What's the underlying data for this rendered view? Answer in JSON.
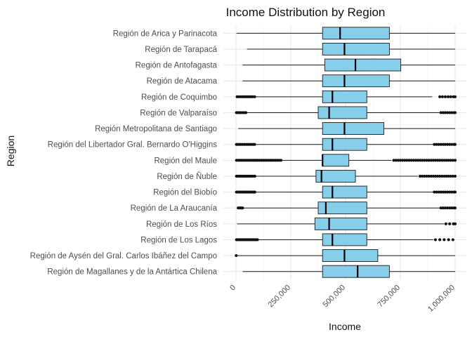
{
  "chart_data": {
    "type": "boxplot",
    "orientation": "horizontal",
    "title": "Income Distribution by Region",
    "xlabel": "Income",
    "ylabel": "Region",
    "xlim": [
      -15000,
      1030000
    ],
    "x_ticks": [
      0,
      250000,
      500000,
      750000,
      1000000
    ],
    "x_tick_labels": [
      "0",
      "250,000",
      "500,000",
      "750,000",
      "1,000,000"
    ],
    "grid": true,
    "legend": "none",
    "colors": {
      "box_fill": "#87CEEB",
      "stroke": "#1a1a1a",
      "outlier": "#111111",
      "grid_major": "#e6e6e6",
      "grid_minor": "#f2f2f2"
    },
    "categories": [
      "Región de Arica y Parinacota",
      "Región de Tarapacá",
      "Región de Antofagasta",
      "Región de Atacama",
      "Región de Coquimbo",
      "Región de Valparaíso",
      "Región Metropolitana de Santiago",
      "Región del Libertador Gral. Bernardo O'Higgins",
      "Región del Maule",
      "Región de Ñuble",
      "Región del Biobío",
      "Región de La Araucanía",
      "Región de Los Ríos",
      "Región de Los Lagos",
      "Región de Aysén del Gral. Carlos Ibáñez del Campo",
      "Región de Magallanes y de la Antártica Chilena"
    ],
    "boxes": [
      {
        "min": 2000,
        "q1": 395000,
        "median": 475000,
        "q3": 700000,
        "max": 1000000,
        "outliers": []
      },
      {
        "min": 50000,
        "q1": 395000,
        "median": 495000,
        "q3": 700000,
        "max": 1000000,
        "outliers": []
      },
      {
        "min": 30000,
        "q1": 405000,
        "median": 545000,
        "q3": 752000,
        "max": 1000000,
        "outliers": []
      },
      {
        "min": 30000,
        "q1": 395000,
        "median": 495000,
        "q3": 700000,
        "max": 1000000,
        "outliers": []
      },
      {
        "min": 15000,
        "q1": 395000,
        "median": 440000,
        "q3": 597000,
        "max": 895000,
        "outliers": [
          5000,
          12000,
          20000,
          28000,
          36000,
          44000,
          52000,
          60000,
          68000,
          76000,
          85000,
          930000,
          942000,
          955000,
          968000,
          980000,
          992000,
          1000000
        ]
      },
      {
        "min": 45000,
        "q1": 375000,
        "median": 425000,
        "q3": 597000,
        "max": 930000,
        "outliers": [
          2000,
          8000,
          15000,
          22000,
          30000,
          38000,
          45000,
          935000,
          945000,
          955000,
          965000,
          975000,
          985000,
          995000,
          1000000
        ]
      },
      {
        "min": 10000,
        "q1": 395000,
        "median": 495000,
        "q3": 675000,
        "max": 1000000,
        "outliers": []
      },
      {
        "min": 85000,
        "q1": 395000,
        "median": 440000,
        "q3": 597000,
        "max": 900000,
        "outliers": [
          2000,
          8000,
          15000,
          22000,
          30000,
          38000,
          46000,
          54000,
          62000,
          70000,
          78000,
          85000,
          905000,
          915000,
          925000,
          935000,
          945000,
          955000,
          965000,
          975000,
          985000,
          995000,
          1000000
        ]
      },
      {
        "min": 200000,
        "q1": 395000,
        "median": 395000,
        "q3": 515000,
        "max": 710000,
        "outliers": [
          2000,
          9000,
          16000,
          23000,
          30000,
          37000,
          44000,
          51000,
          58000,
          65000,
          72000,
          79000,
          86000,
          93000,
          100000,
          108000,
          116000,
          124000,
          132000,
          140000,
          148000,
          156000,
          164000,
          172000,
          180000,
          188000,
          196000,
          205000,
          720000,
          730000,
          740000,
          750000,
          760000,
          770000,
          780000,
          790000,
          800000,
          810000,
          820000,
          830000,
          840000,
          850000,
          860000,
          870000,
          880000,
          890000,
          900000,
          910000,
          920000,
          930000,
          940000,
          950000,
          960000,
          970000,
          980000,
          990000,
          1000000
        ]
      },
      {
        "min": 90000,
        "q1": 365000,
        "median": 390000,
        "q3": 545000,
        "max": 830000,
        "outliers": [
          2000,
          8000,
          14000,
          20000,
          26000,
          32000,
          38000,
          44000,
          50000,
          56000,
          62000,
          68000,
          74000,
          80000,
          86000,
          840000,
          850000,
          860000,
          870000,
          880000,
          890000,
          900000,
          910000,
          920000,
          930000,
          940000,
          950000,
          960000,
          970000,
          980000,
          990000,
          1000000
        ]
      },
      {
        "min": 90000,
        "q1": 395000,
        "median": 440000,
        "q3": 597000,
        "max": 900000,
        "outliers": [
          2000,
          8000,
          14000,
          20000,
          26000,
          32000,
          38000,
          44000,
          50000,
          56000,
          62000,
          68000,
          74000,
          80000,
          86000,
          905000,
          915000,
          925000,
          935000,
          945000,
          955000,
          965000,
          975000,
          985000,
          995000,
          1000000
        ]
      },
      {
        "min": 35000,
        "q1": 375000,
        "median": 410000,
        "q3": 597000,
        "max": 930000,
        "outliers": [
          10000,
          15000,
          20000,
          25000,
          30000,
          935000,
          945000,
          955000,
          965000,
          975000,
          985000,
          995000,
          1000000
        ]
      },
      {
        "min": 5000,
        "q1": 360000,
        "median": 425000,
        "q3": 597000,
        "max": 950000,
        "outliers": [
          958000,
          975000,
          992000,
          1000000
        ]
      },
      {
        "min": 100000,
        "q1": 395000,
        "median": 440000,
        "q3": 597000,
        "max": 900000,
        "outliers": [
          2000,
          8000,
          14000,
          20000,
          26000,
          32000,
          38000,
          44000,
          50000,
          56000,
          62000,
          68000,
          74000,
          80000,
          86000,
          92000,
          98000,
          910000,
          930000,
          950000,
          970000,
          990000
        ]
      },
      {
        "min": 5000,
        "q1": 395000,
        "median": 495000,
        "q3": 647000,
        "max": 1000000,
        "outliers": [
          1000
        ]
      },
      {
        "min": 30000,
        "q1": 395000,
        "median": 555000,
        "q3": 700000,
        "max": 1000000,
        "outliers": []
      }
    ]
  }
}
